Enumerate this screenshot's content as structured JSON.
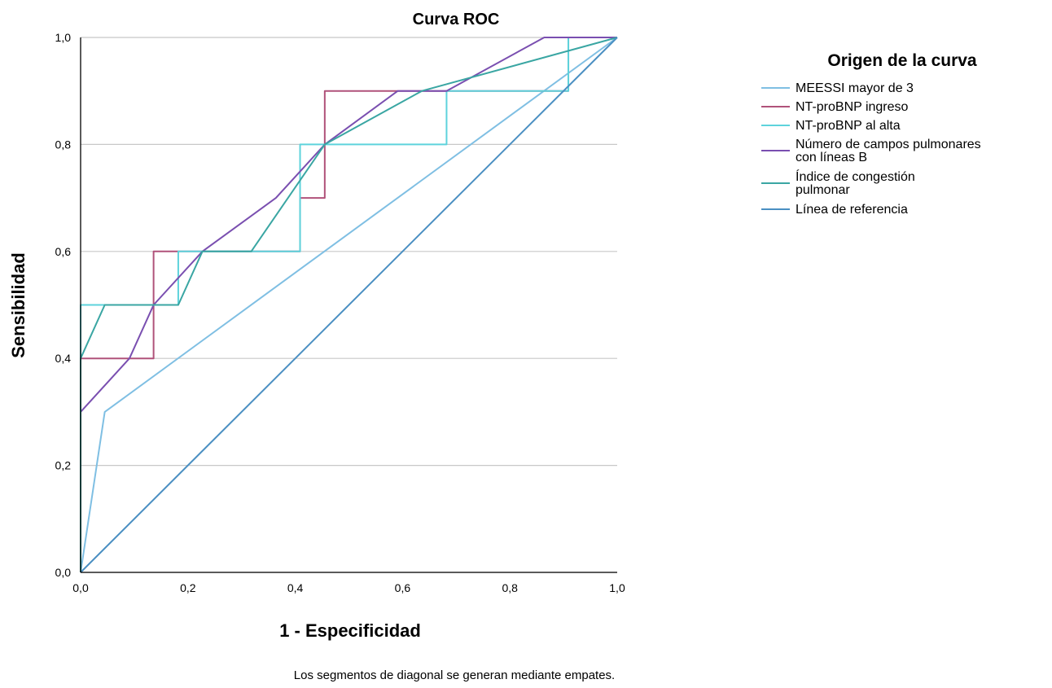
{
  "chart_data": {
    "type": "line",
    "title": "Curva ROC",
    "xlabel": "1 - Especificidad",
    "ylabel": "Sensibilidad",
    "xlim": [
      0,
      1
    ],
    "ylim": [
      0,
      1
    ],
    "x_ticks": [
      "0,0",
      "0,2",
      "0,4",
      "0,6",
      "0,8",
      "1,0"
    ],
    "y_ticks": [
      "0,0",
      "0,2",
      "0,4",
      "0,6",
      "0,8",
      "1,0"
    ],
    "grid": "horizontal",
    "legend_title": "Origen de la curva",
    "legend_position": "right",
    "footnote": "Los segmentos de diagonal se generan mediante empates.",
    "series": [
      {
        "name": "MEESSI mayor de 3",
        "color": "#7fbfe3",
        "points": [
          [
            0,
            0
          ],
          [
            0.045,
            0.3
          ],
          [
            1,
            1
          ]
        ]
      },
      {
        "name": "NT-proBNP ingreso",
        "color": "#b0527a",
        "points": [
          [
            0,
            0
          ],
          [
            0,
            0.4
          ],
          [
            0.136,
            0.4
          ],
          [
            0.136,
            0.6
          ],
          [
            0.409,
            0.6
          ],
          [
            0.409,
            0.7
          ],
          [
            0.455,
            0.7
          ],
          [
            0.455,
            0.9
          ],
          [
            0.909,
            0.9
          ],
          [
            0.909,
            1.0
          ],
          [
            1,
            1
          ]
        ]
      },
      {
        "name": "NT-proBNP al alta",
        "color": "#5ed3dc",
        "points": [
          [
            0,
            0
          ],
          [
            0,
            0.5
          ],
          [
            0.182,
            0.5
          ],
          [
            0.182,
            0.6
          ],
          [
            0.409,
            0.6
          ],
          [
            0.409,
            0.8
          ],
          [
            0.682,
            0.8
          ],
          [
            0.682,
            0.9
          ],
          [
            0.909,
            0.9
          ],
          [
            0.909,
            1.0
          ],
          [
            1,
            1
          ]
        ]
      },
      {
        "name": "Número de campos pulmonares con líneas B",
        "color": "#7a4fb0",
        "points": [
          [
            0,
            0
          ],
          [
            0,
            0.3
          ],
          [
            0.091,
            0.4
          ],
          [
            0.136,
            0.5
          ],
          [
            0.227,
            0.6
          ],
          [
            0.364,
            0.7
          ],
          [
            0.455,
            0.8
          ],
          [
            0.591,
            0.9
          ],
          [
            0.682,
            0.9
          ],
          [
            0.864,
            1.0
          ],
          [
            1,
            1
          ]
        ]
      },
      {
        "name": "Índice de congestión pulmonar",
        "color": "#3aa6a3",
        "points": [
          [
            0,
            0
          ],
          [
            0,
            0.4
          ],
          [
            0.045,
            0.5
          ],
          [
            0.182,
            0.5
          ],
          [
            0.227,
            0.6
          ],
          [
            0.318,
            0.6
          ],
          [
            0.455,
            0.8
          ],
          [
            0.636,
            0.9
          ],
          [
            1,
            1
          ]
        ]
      },
      {
        "name": "Línea de referencia",
        "color": "#4a8fc2",
        "points": [
          [
            0,
            0
          ],
          [
            1,
            1
          ]
        ]
      }
    ]
  }
}
